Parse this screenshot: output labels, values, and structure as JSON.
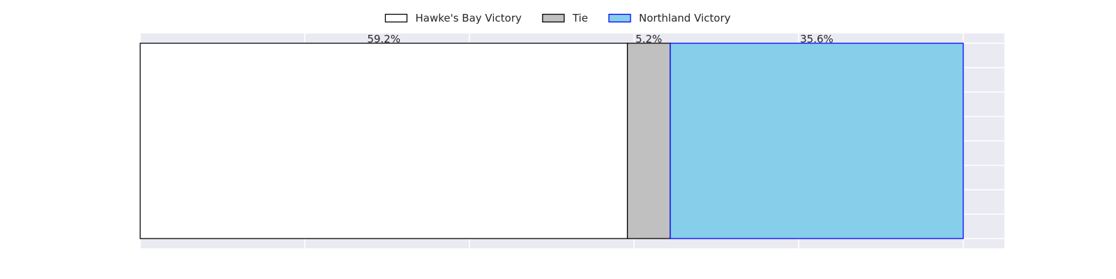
{
  "chart_data": {
    "type": "bar",
    "orientation": "horizontal-stacked",
    "categories": [
      ""
    ],
    "series": [
      {
        "name": "Hawke's Bay Victory",
        "values": [
          59.2
        ],
        "label": "59.2%",
        "fill": "#ffffff",
        "stroke": "#000000"
      },
      {
        "name": "Tie",
        "values": [
          5.2
        ],
        "label": "5.2%",
        "fill": "#c0c0c0",
        "stroke": "#000000"
      },
      {
        "name": "Northland Victory",
        "values": [
          35.6
        ],
        "label": "35.6%",
        "fill": "#87ceeb",
        "stroke": "#0000ff"
      }
    ],
    "xlim": [
      0,
      105
    ],
    "grid": true,
    "legend": "top-center",
    "title": "",
    "xlabel": "",
    "ylabel": ""
  }
}
